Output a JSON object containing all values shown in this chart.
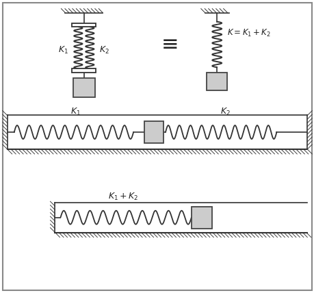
{
  "bg_color": "#ffffff",
  "border_color": "#888888",
  "spring_color": "#333333",
  "mass_color": "#cccccc",
  "mass_edge": "#444444",
  "text_color": "#222222",
  "fig_width": 4.6,
  "fig_height": 4.28,
  "dpi": 100
}
